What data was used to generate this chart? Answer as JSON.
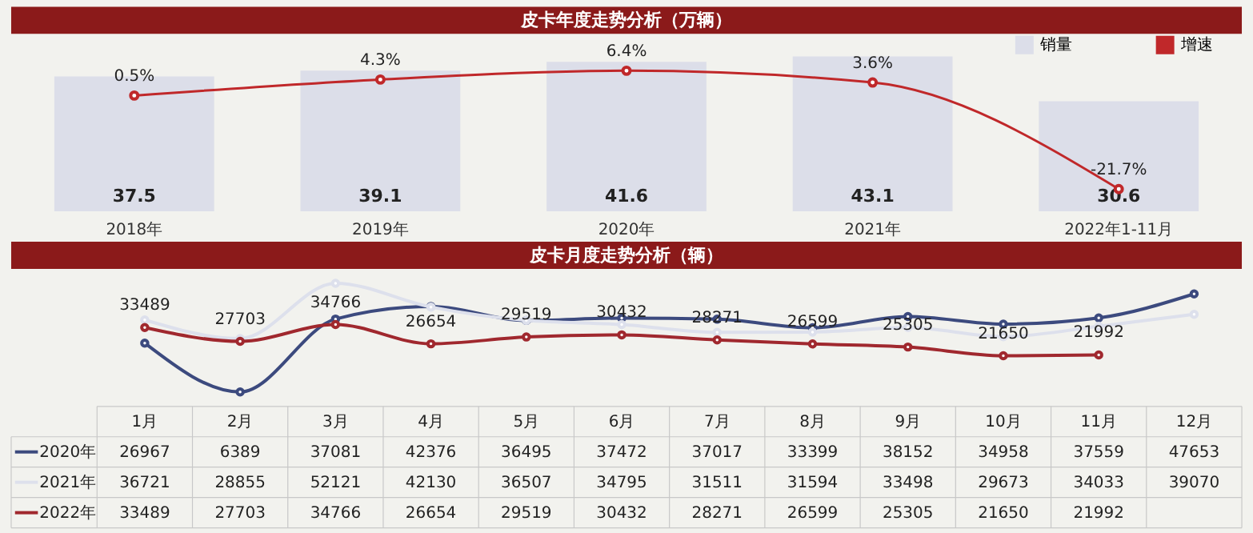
{
  "chart_data": [
    {
      "type": "bar",
      "title": "皮卡年度走势分析（万辆）",
      "categories": [
        "2018年",
        "2019年",
        "2020年",
        "2021年",
        "2022年1-11月"
      ],
      "series": [
        {
          "name": "销量",
          "type": "bar",
          "color": "#dcdee9",
          "values": [
            37.5,
            39.1,
            41.6,
            43.1,
            30.6
          ]
        },
        {
          "name": "增速",
          "type": "line",
          "axis": "y2",
          "color": "#c0282a",
          "values": [
            0.5,
            4.3,
            6.4,
            3.6,
            -21.7
          ],
          "value_labels": [
            "0.5%",
            "4.3%",
            "6.4%",
            "3.6%",
            "-21.7%"
          ]
        }
      ],
      "data_labels": true,
      "legend": "top right",
      "marker": "circle",
      "tick_labels": "x",
      "ylim": [
        0,
        48
      ],
      "y2lim": [
        -27,
        14
      ]
    },
    {
      "type": "line",
      "title": "皮卡月度走势分析（辆）",
      "categories": [
        "1月",
        "2月",
        "3月",
        "4月",
        "5月",
        "6月",
        "7月",
        "8月",
        "9月",
        "10月",
        "11月",
        "12月"
      ],
      "series": [
        {
          "name": "2020年",
          "color": "#3c4a7e",
          "values": [
            26967,
            6389,
            37081,
            42376,
            36495,
            37472,
            37017,
            33399,
            38152,
            34958,
            37559,
            47653
          ]
        },
        {
          "name": "2021年",
          "color": "#dde0ec",
          "values": [
            36721,
            28855,
            52121,
            42130,
            36507,
            34795,
            31511,
            31594,
            33498,
            29673,
            34033,
            39070
          ]
        },
        {
          "name": "2022年",
          "color": "#a0282e",
          "values": [
            33489,
            27703,
            34766,
            26654,
            29519,
            30432,
            28271,
            26599,
            25305,
            21650,
            21992,
            null
          ],
          "value_labels": [
            "33489",
            "27703",
            "34766",
            "26654",
            "29519",
            "30432",
            "28271",
            "26599",
            "25305",
            "21650",
            "21992",
            null
          ]
        }
      ],
      "data_labels": true,
      "legend": "left",
      "marker": "circle"
    }
  ]
}
